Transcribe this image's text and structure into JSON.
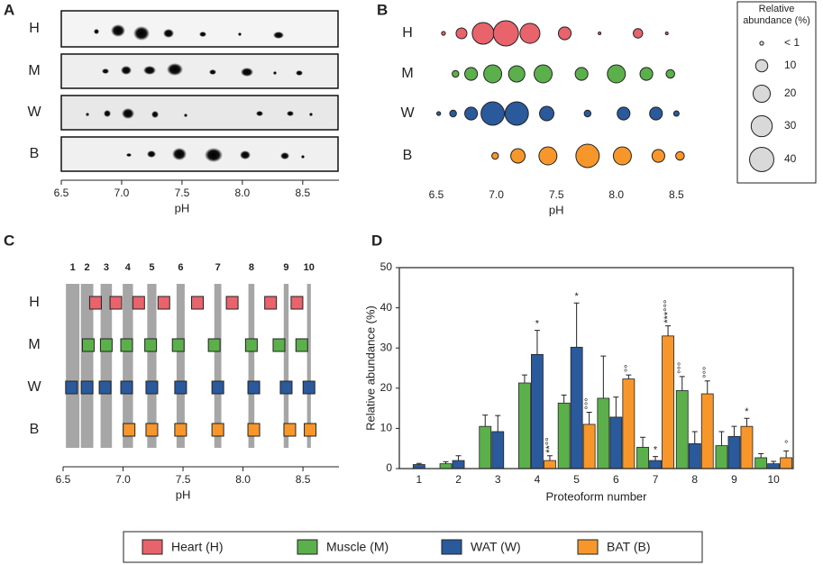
{
  "chart_data": [
    {
      "type": "blot",
      "panel": "A",
      "rows": [
        "H",
        "M",
        "W",
        "B"
      ],
      "xlabel": "pH",
      "xlim": [
        6.5,
        8.8
      ],
      "xticks": [
        6.5,
        {
          "value": 7,
          "label": "7.0"
        },
        7.5,
        {
          "value": 8,
          "label": "8.0"
        },
        8.5
      ]
    },
    {
      "type": "bubble",
      "panel": "B",
      "rows": [
        "H",
        "M",
        "W",
        "B"
      ],
      "xlabel": "pH",
      "xlim": [
        6.5,
        8.7
      ],
      "xticks": [
        6.5,
        {
          "value": 7,
          "label": "7.0"
        },
        7.5,
        {
          "value": 8,
          "label": "8.0"
        },
        8.5
      ],
      "series": [
        {
          "color": "#e8636c",
          "x": [
            6.56,
            6.71,
            6.89,
            7.08,
            7.28,
            7.57,
            7.86,
            8.18,
            8.42
          ],
          "sizes": [
            1,
            8,
            32,
            43,
            27,
            11,
            0.5,
            6,
            0.5
          ]
        },
        {
          "color": "#5bb04b",
          "x": [
            6.66,
            6.79,
            6.97,
            7.17,
            7.39,
            7.71,
            8.0,
            8.25,
            8.45
          ],
          "sizes": [
            3,
            11,
            22,
            18,
            22,
            11,
            22,
            11,
            5
          ]
        },
        {
          "color": "#2b5a9c",
          "x": [
            6.52,
            6.64,
            6.79,
            6.97,
            7.17,
            7.42,
            7.76,
            8.06,
            8.33,
            8.5
          ],
          "sizes": [
            1,
            3,
            11,
            37,
            37,
            14,
            3,
            11,
            11,
            2
          ]
        },
        {
          "color": "#f7962a",
          "x": [
            6.99,
            7.18,
            7.43,
            7.76,
            8.05,
            8.35,
            8.53
          ],
          "sizes": [
            3,
            14,
            22,
            37,
            22,
            11,
            5
          ]
        }
      ],
      "size_legend": {
        "title": "Relative abundance (%)",
        "sizes": [
          {
            "value": 1,
            "label": "< 1"
          },
          10,
          20,
          30,
          40
        ]
      }
    },
    {
      "type": "pi-map",
      "panel": "C",
      "rows": [
        "H",
        "M",
        "W",
        "B"
      ],
      "xlabel": "pH",
      "xlim": [
        6.5,
        8.8
      ],
      "xticks": [
        6.5,
        {
          "value": 7,
          "label": "7.0"
        },
        7.5,
        {
          "value": 8,
          "label": "8.0"
        },
        8.5
      ],
      "columns": [
        1,
        2,
        3,
        4,
        5,
        6,
        7,
        8,
        9,
        10
      ],
      "column_x": [
        6.58,
        6.7,
        6.86,
        7.04,
        7.24,
        7.48,
        7.79,
        8.07,
        8.36,
        8.55
      ],
      "series": [
        {
          "color": "#e8636c",
          "x": [
            6.77,
            6.94,
            7.13,
            7.34,
            7.62,
            7.91,
            8.23,
            8.45
          ]
        },
        {
          "color": "#5bb04b",
          "x": [
            6.71,
            6.86,
            7.03,
            7.23,
            7.46,
            7.76,
            8.07,
            8.3,
            8.49
          ]
        },
        {
          "color": "#2b5a9c",
          "x": [
            6.57,
            6.7,
            6.85,
            7.03,
            7.24,
            7.48,
            7.79,
            8.09,
            8.36,
            8.55
          ]
        },
        {
          "color": "#f7962a",
          "x": [
            7.05,
            7.24,
            7.48,
            7.79,
            8.09,
            8.39,
            8.56
          ]
        }
      ]
    },
    {
      "type": "bar",
      "panel": "D",
      "categories": [
        "1",
        "2",
        "3",
        "4",
        "5",
        "6",
        "7",
        "8",
        "9",
        "10"
      ],
      "xlabel": "Proteoform number",
      "ylabel": "Relative abundance (%)",
      "ylim": [
        0,
        50
      ],
      "yticks": [
        0,
        10,
        20,
        30,
        40,
        50
      ],
      "series": [
        {
          "color": "#5bb04b",
          "values": [
            null,
            1.2,
            10.5,
            21.3,
            16.3,
            17.5,
            5.3,
            19.4,
            5.7,
            2.7
          ],
          "errors": [
            null,
            0.5,
            2.8,
            2,
            2,
            10.5,
            2.5,
            3.5,
            3.5,
            1
          ],
          "annotations": [
            null,
            null,
            null,
            null,
            null,
            null,
            null,
            "°°°",
            null,
            null
          ]
        },
        {
          "color": "#2b5a9c",
          "values": [
            1,
            2,
            9.2,
            28.4,
            30.2,
            12.8,
            2,
            6.2,
            8,
            1.2
          ],
          "errors": [
            0.3,
            1.2,
            4,
            6,
            11,
            5,
            1,
            3,
            2.5,
            0.6
          ],
          "annotations": [
            null,
            null,
            null,
            "*",
            "*",
            null,
            "*",
            null,
            null,
            null
          ]
        },
        {
          "color": "#f7962a",
          "values": [
            null,
            null,
            null,
            2,
            11,
            22.3,
            33,
            18.6,
            10.5,
            2.7
          ],
          "errors": [
            null,
            null,
            null,
            1.2,
            3,
            1,
            2.5,
            3.2,
            2,
            1.7
          ],
          "annotations": [
            null,
            null,
            null,
            "**°°",
            "°°°",
            "°°",
            "***°°°",
            "°°°",
            "*",
            "°"
          ]
        }
      ]
    }
  ],
  "legend": [
    {
      "name": "Heart (H)",
      "color": "#e8636c"
    },
    {
      "name": "Muscle (M)",
      "color": "#5bb04b"
    },
    {
      "name": "WAT (W)",
      "color": "#2b5a9c"
    },
    {
      "name": "BAT (B)",
      "color": "#f7962a"
    }
  ]
}
